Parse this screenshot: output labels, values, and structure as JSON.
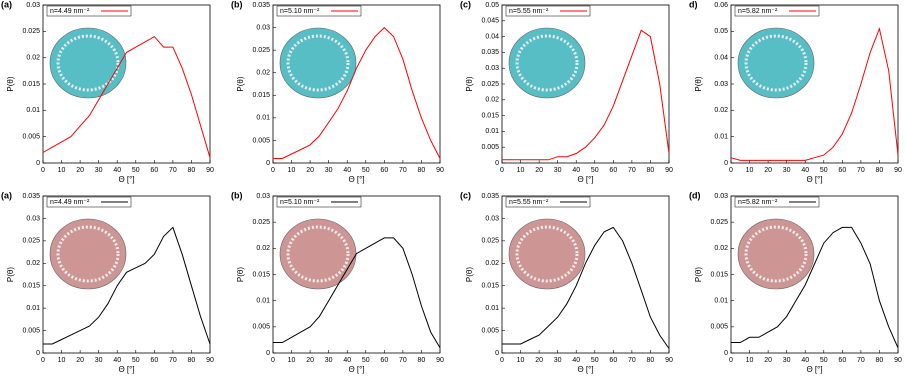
{
  "chart_data": [
    {
      "type": "line",
      "panel_label": "(a)",
      "xlabel": "Θ [°]",
      "ylabel": "P(θ)",
      "legend": "upper left",
      "inset_color": "#46b8bf",
      "x": [
        0,
        5,
        10,
        15,
        20,
        25,
        30,
        35,
        40,
        45,
        50,
        55,
        60,
        65,
        70,
        75,
        80,
        85,
        90
      ],
      "series": [
        {
          "name": "n=4.49 nm⁻²",
          "color": "#ff0000",
          "values": [
            0.002,
            0.003,
            0.004,
            0.005,
            0.007,
            0.009,
            0.012,
            0.015,
            0.018,
            0.021,
            0.022,
            0.023,
            0.024,
            0.022,
            0.022,
            0.018,
            0.013,
            0.007,
            0.001
          ]
        }
      ],
      "xlim": [
        0,
        90
      ],
      "xticks": [
        0,
        10,
        20,
        30,
        40,
        50,
        60,
        70,
        80,
        90
      ],
      "ylim": [
        0,
        0.03
      ],
      "yticks": [
        0,
        0.005,
        0.01,
        0.015,
        0.02,
        0.025,
        0.03
      ]
    },
    {
      "type": "line",
      "panel_label": "(b)",
      "xlabel": "Θ [°]",
      "ylabel": "P(θ)",
      "legend": "upper left",
      "inset_color": "#46b8bf",
      "x": [
        0,
        5,
        10,
        15,
        20,
        25,
        30,
        35,
        40,
        45,
        50,
        55,
        60,
        65,
        70,
        75,
        80,
        85,
        90
      ],
      "series": [
        {
          "name": "n=5.10 nm⁻²",
          "color": "#ff0000",
          "values": [
            0.001,
            0.001,
            0.002,
            0.003,
            0.004,
            0.006,
            0.009,
            0.012,
            0.016,
            0.021,
            0.025,
            0.028,
            0.03,
            0.028,
            0.023,
            0.016,
            0.01,
            0.005,
            0.001
          ]
        }
      ],
      "xlim": [
        0,
        90
      ],
      "xticks": [
        0,
        10,
        20,
        30,
        40,
        50,
        60,
        70,
        80,
        90
      ],
      "ylim": [
        0,
        0.035
      ],
      "yticks": [
        0,
        0.005,
        0.01,
        0.015,
        0.02,
        0.025,
        0.03,
        0.035
      ]
    },
    {
      "type": "line",
      "panel_label": "(c)",
      "xlabel": "Θ [°]",
      "ylabel": "P(θ)",
      "legend": "upper left",
      "inset_color": "#46b8bf",
      "x": [
        0,
        5,
        10,
        15,
        20,
        25,
        30,
        35,
        40,
        45,
        50,
        55,
        60,
        65,
        70,
        75,
        80,
        85,
        90
      ],
      "series": [
        {
          "name": "n=5.55 nm⁻²",
          "color": "#ff0000",
          "values": [
            0.001,
            0.001,
            0.001,
            0.001,
            0.001,
            0.001,
            0.002,
            0.002,
            0.003,
            0.005,
            0.008,
            0.012,
            0.018,
            0.026,
            0.034,
            0.042,
            0.04,
            0.025,
            0.003
          ]
        }
      ],
      "xlim": [
        0,
        90
      ],
      "xticks": [
        0,
        10,
        20,
        30,
        40,
        50,
        60,
        70,
        80,
        90
      ],
      "ylim": [
        0,
        0.05
      ],
      "yticks": [
        0,
        0.005,
        0.01,
        0.015,
        0.02,
        0.025,
        0.03,
        0.035,
        0.04,
        0.045,
        0.05
      ]
    },
    {
      "type": "line",
      "panel_label": "d)",
      "xlabel": "Θ [°]",
      "ylabel": "P(θ)",
      "legend": "upper left",
      "inset_color": "#46b8bf",
      "x": [
        0,
        5,
        10,
        15,
        20,
        25,
        30,
        35,
        40,
        45,
        50,
        55,
        60,
        65,
        70,
        75,
        80,
        85,
        90
      ],
      "series": [
        {
          "name": "n=5.82 nm⁻²",
          "color": "#ff0000",
          "values": [
            0.002,
            0.001,
            0.001,
            0.001,
            0.001,
            0.001,
            0.001,
            0.001,
            0.001,
            0.002,
            0.003,
            0.006,
            0.011,
            0.019,
            0.03,
            0.042,
            0.051,
            0.035,
            0.003
          ]
        }
      ],
      "xlim": [
        0,
        90
      ],
      "xticks": [
        0,
        10,
        20,
        30,
        40,
        50,
        60,
        70,
        80,
        90
      ],
      "ylim": [
        0,
        0.06
      ],
      "yticks": [
        0,
        0.01,
        0.02,
        0.03,
        0.04,
        0.05,
        0.06
      ]
    },
    {
      "type": "line",
      "panel_label": "(a)",
      "xlabel": "Θ [°]",
      "ylabel": "P(θ)",
      "legend": "upper left",
      "inset_color": "#c98a8a",
      "x": [
        0,
        5,
        10,
        15,
        20,
        25,
        30,
        35,
        40,
        45,
        50,
        55,
        60,
        65,
        70,
        75,
        80,
        85,
        90
      ],
      "series": [
        {
          "name": "n=4.49 nm⁻²",
          "color": "#000000",
          "values": [
            0.002,
            0.002,
            0.003,
            0.004,
            0.005,
            0.006,
            0.008,
            0.011,
            0.015,
            0.018,
            0.019,
            0.02,
            0.022,
            0.026,
            0.028,
            0.022,
            0.015,
            0.008,
            0.002
          ]
        }
      ],
      "xlim": [
        0,
        90
      ],
      "xticks": [
        0,
        10,
        20,
        30,
        40,
        50,
        60,
        70,
        80,
        90
      ],
      "ylim": [
        0,
        0.035
      ],
      "yticks": [
        0,
        0.005,
        0.01,
        0.015,
        0.02,
        0.025,
        0.03,
        0.035
      ]
    },
    {
      "type": "line",
      "panel_label": "(b)",
      "xlabel": "Θ [°]",
      "ylabel": "P(θ)",
      "legend": "upper left",
      "inset_color": "#c98a8a",
      "x": [
        0,
        5,
        10,
        15,
        20,
        25,
        30,
        35,
        40,
        45,
        50,
        55,
        60,
        65,
        70,
        75,
        80,
        85,
        90
      ],
      "series": [
        {
          "name": "n=5.10 nm⁻²",
          "color": "#000000",
          "values": [
            0.002,
            0.002,
            0.003,
            0.004,
            0.005,
            0.007,
            0.01,
            0.013,
            0.016,
            0.019,
            0.02,
            0.021,
            0.022,
            0.022,
            0.02,
            0.015,
            0.009,
            0.004,
            0.001
          ]
        }
      ],
      "xlim": [
        0,
        90
      ],
      "xticks": [
        0,
        10,
        20,
        30,
        40,
        50,
        60,
        70,
        80,
        90
      ],
      "ylim": [
        0,
        0.03
      ],
      "yticks": [
        0,
        0.005,
        0.01,
        0.015,
        0.02,
        0.025,
        0.03
      ]
    },
    {
      "type": "line",
      "panel_label": "(c)",
      "xlabel": "Θ [°]",
      "ylabel": "P(θ)",
      "legend": "upper left",
      "inset_color": "#c98a8a",
      "x": [
        0,
        5,
        10,
        15,
        20,
        25,
        30,
        35,
        40,
        45,
        50,
        55,
        60,
        65,
        70,
        75,
        80,
        85,
        90
      ],
      "series": [
        {
          "name": "n=5.55 nm⁻²",
          "color": "#000000",
          "values": [
            0.002,
            0.002,
            0.002,
            0.003,
            0.004,
            0.006,
            0.008,
            0.011,
            0.015,
            0.02,
            0.024,
            0.027,
            0.028,
            0.025,
            0.02,
            0.014,
            0.008,
            0.004,
            0.001
          ]
        }
      ],
      "xlim": [
        0,
        90
      ],
      "xticks": [
        0,
        10,
        20,
        30,
        40,
        50,
        60,
        70,
        80,
        90
      ],
      "ylim": [
        0,
        0.035
      ],
      "yticks": [
        0,
        0.005,
        0.01,
        0.015,
        0.02,
        0.025,
        0.03,
        0.035
      ]
    },
    {
      "type": "line",
      "panel_label": "(d)",
      "xlabel": "Θ [°]",
      "ylabel": "P(θ)",
      "legend": "upper left",
      "inset_color": "#c98a8a",
      "x": [
        0,
        5,
        10,
        15,
        20,
        25,
        30,
        35,
        40,
        45,
        50,
        55,
        60,
        65,
        70,
        75,
        80,
        85,
        90
      ],
      "series": [
        {
          "name": "n=5.82 nm⁻²",
          "color": "#000000",
          "values": [
            0.002,
            0.002,
            0.003,
            0.003,
            0.004,
            0.005,
            0.007,
            0.01,
            0.013,
            0.017,
            0.021,
            0.023,
            0.024,
            0.024,
            0.021,
            0.017,
            0.01,
            0.005,
            0.001
          ]
        }
      ],
      "xlim": [
        0,
        90
      ],
      "xticks": [
        0,
        10,
        20,
        30,
        40,
        50,
        60,
        70,
        80,
        90
      ],
      "ylim": [
        0,
        0.03
      ],
      "yticks": [
        0,
        0.005,
        0.01,
        0.015,
        0.02,
        0.025,
        0.03
      ]
    }
  ]
}
